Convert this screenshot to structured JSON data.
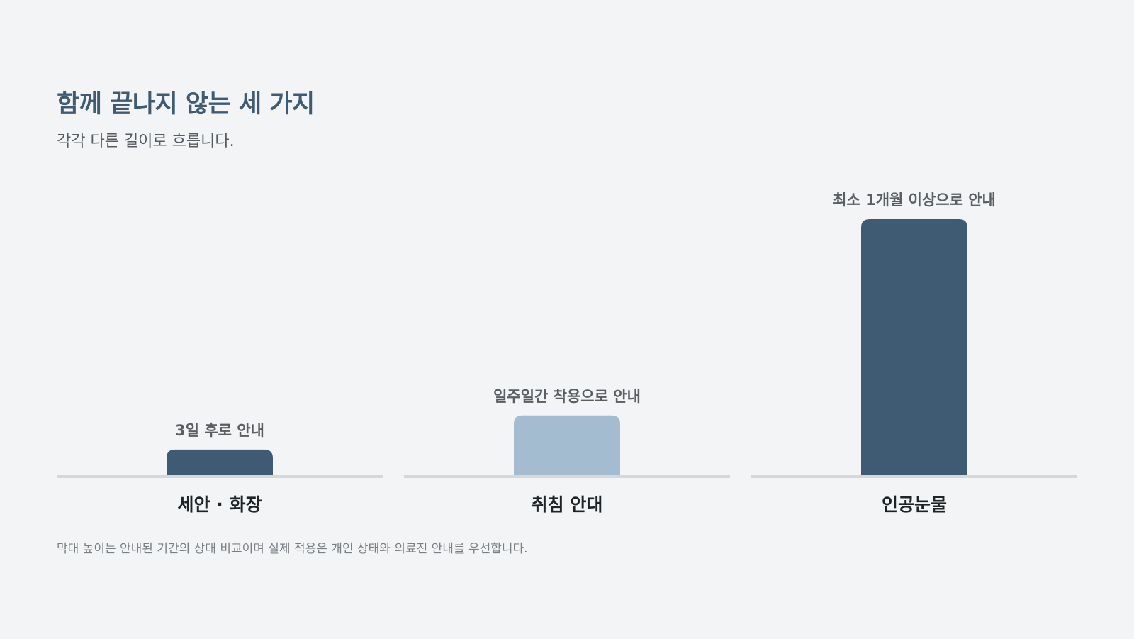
{
  "header": {
    "title": "함께 끝나지 않는 세 가지",
    "subtitle": "각각 다른 길이로 흐릅니다."
  },
  "chart_data": {
    "type": "bar",
    "categories": [
      "세안 · 화장",
      "취침 안대",
      "인공눈물"
    ],
    "values": [
      3,
      7,
      30
    ],
    "value_unit": "days",
    "data_labels": [
      "3일 후로 안내",
      "일주일간 착용으로 안내",
      "최소 1개월 이상으로 안내"
    ],
    "bar_colors": [
      "#3f5b73",
      "#a3bcd0",
      "#3f5b73"
    ],
    "ylim": [
      0,
      30
    ],
    "grid": false,
    "legend": "none"
  },
  "footnote": "막대 높이는 안내된 기간의 상대 비교이며 실제 적용은 개인 상태와 의료진 안내를 우선합니다."
}
